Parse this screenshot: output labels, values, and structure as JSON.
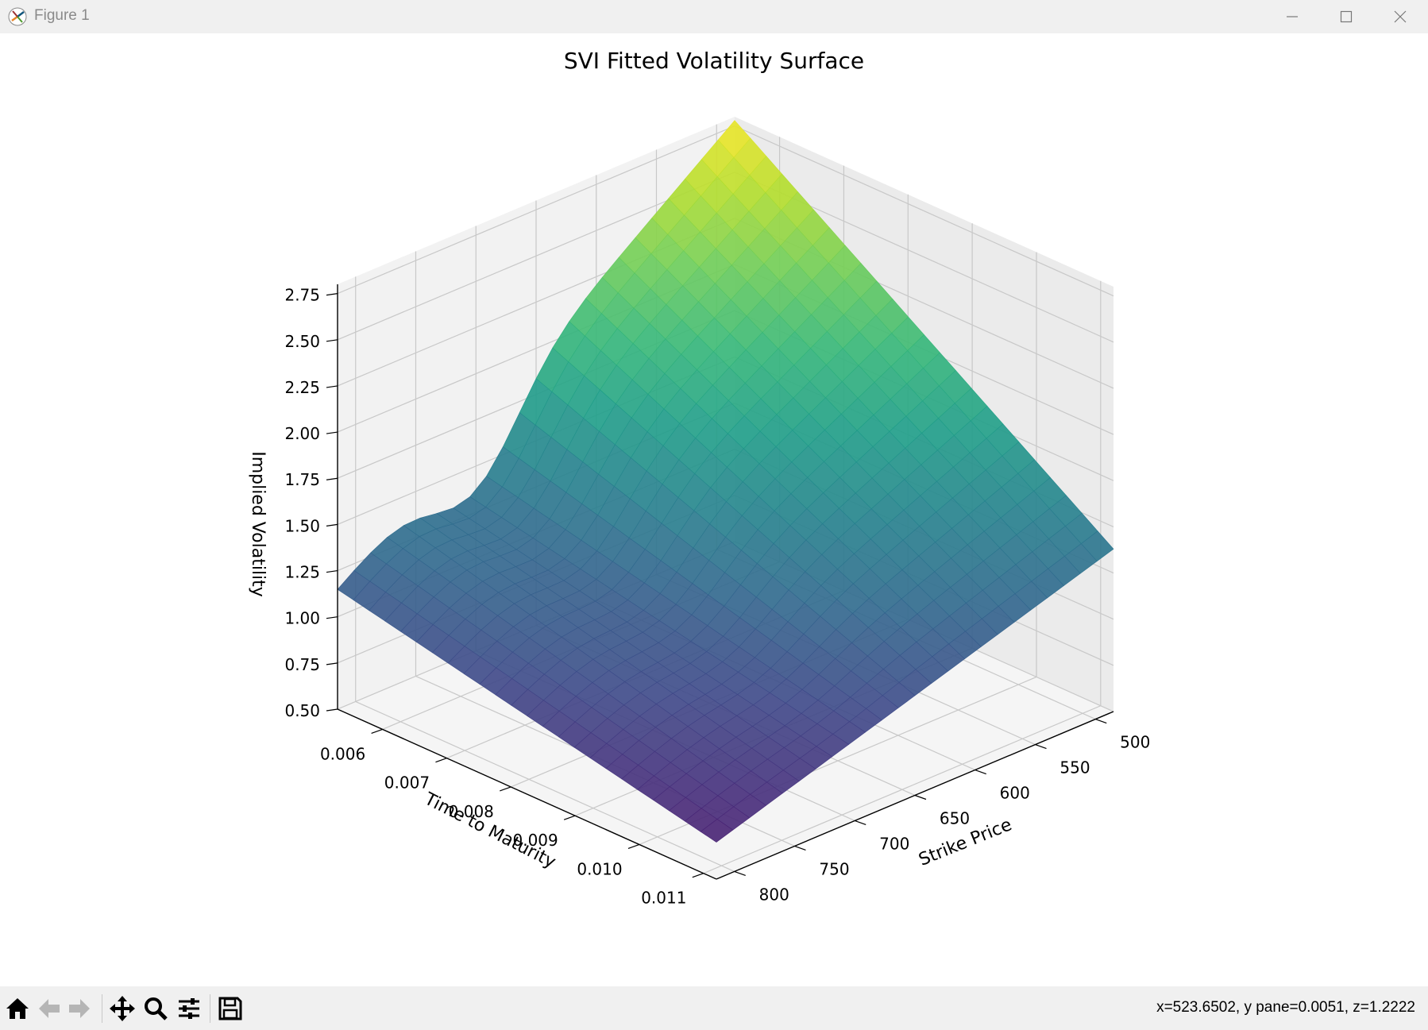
{
  "window": {
    "title": "Figure 1"
  },
  "toolbar": {
    "tools": [
      "home-icon",
      "back-arrow-icon",
      "forward-arrow-icon",
      "pan-move-icon",
      "zoom-magnifier-icon",
      "configure-subplots-icon",
      "save-floppy-icon"
    ],
    "status": "x=523.6502, y pane=0.0051, z=1.2222"
  },
  "chart_data": {
    "type": "surface",
    "title": "SVI Fitted Volatility Surface",
    "xlabel": "Strike Price",
    "ylabel": "Time to Maturity",
    "zlabel": "Implied Volatility",
    "x_ticks": [
      "500",
      "550",
      "600",
      "650",
      "700",
      "750",
      "800"
    ],
    "y_ticks": [
      "0.006",
      "0.007",
      "0.008",
      "0.009",
      "0.010",
      "0.011"
    ],
    "z_ticks": [
      "0.50",
      "0.75",
      "1.00",
      "1.25",
      "1.50",
      "1.75",
      "2.00",
      "2.25",
      "2.50",
      "2.75"
    ],
    "xlim": [
      485,
      815
    ],
    "ylim": [
      0.0053,
      0.0112
    ],
    "zlim": [
      0.5,
      2.8
    ],
    "colormap": "viridis",
    "view": {
      "elev": 20,
      "azim": 45
    },
    "surface_description": "Implied volatility vs strike and maturity; volatility rises steeply at low strikes and short maturities",
    "corner_values": {
      "strike_500_mat_0.0053": 2.78,
      "strike_800_mat_0.0053": 1.15,
      "strike_500_mat_0.0112": 1.38,
      "strike_800_mat_0.0112": 0.7
    }
  }
}
